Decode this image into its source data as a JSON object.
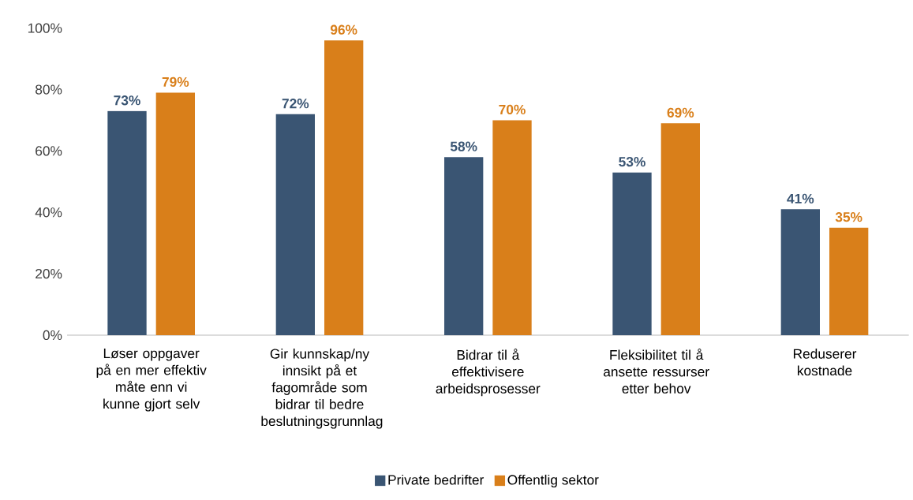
{
  "chart_data": {
    "type": "bar",
    "categories": [
      "Løser oppgaver på en mer effektiv måte enn vi kunne gjort selv",
      "Gir kunnskap/ny innsikt på et fagområde som bidrar til bedre beslutningsgrunnlag",
      "Bidrar til å effektivisere arbeidsprosesser",
      "Fleksibilitet til å ansette ressurser etter behov",
      "Reduserer kostnade"
    ],
    "series": [
      {
        "name": "Private bedrifter",
        "color": "#3a5573",
        "values": [
          73,
          72,
          58,
          53,
          41
        ],
        "value_labels": [
          "73%",
          "72%",
          "58%",
          "53%",
          "41%"
        ]
      },
      {
        "name": "Offentlig sektor",
        "color": "#d97f1a",
        "values": [
          79,
          96,
          70,
          69,
          35
        ],
        "value_labels": [
          "79%",
          "96%",
          "70%",
          "69%",
          "35%"
        ]
      }
    ],
    "ylim": [
      0,
      100
    ],
    "yticks": [
      {
        "value": 0,
        "label": "0%"
      },
      {
        "value": 20,
        "label": "20%"
      },
      {
        "value": 40,
        "label": "40%"
      },
      {
        "value": 60,
        "label": "60%"
      },
      {
        "value": 80,
        "label": "80%"
      },
      {
        "value": 100,
        "label": "100%"
      }
    ],
    "legend": "bottom"
  }
}
